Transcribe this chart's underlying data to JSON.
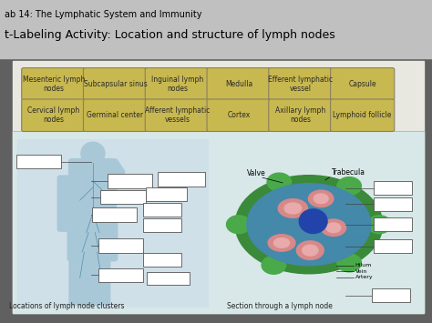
{
  "title1": "ab 14: The Lymphatic System and Immunity",
  "title2": "t-Labeling Activity: Location and structure of lymph nodes",
  "row1_buttons": [
    "Mesenteric lymph\nnodes",
    "Subcapsular sinus",
    "Inguinal lymph\nnodes",
    "Medulla",
    "Efferent lymphatic\nvessel",
    "Capsule"
  ],
  "row2_buttons": [
    "Cervical lymph\nnodes",
    "Germinal center",
    "Afferent lymphatic\nvessels",
    "Cortex",
    "Axillary lymph\nnodes",
    "Lymphoid follicle"
  ],
  "button_color": "#c8b850",
  "button_edge": "#8a8060",
  "button_text": "#2a2a2a",
  "button_fontsize": 5.5,
  "valve_label": "Valve",
  "trabecula_label": "Trabecula",
  "hilum_labels": [
    "Hilum",
    "Vein",
    "Artery"
  ],
  "bottom_label_left": "Locations of lymph node clusters",
  "bottom_label_right": "Section through a lymph node",
  "title1_fontsize": 7,
  "title2_fontsize": 9,
  "label_fontsize": 5.5,
  "bg_outer": "#606060",
  "bg_header": "#c0c0c0",
  "bg_panel": "#e8e8e0",
  "bg_diagram": "#d8e8e8",
  "body_color": "#a8c8d8",
  "lymph_line_color": "#5090a8",
  "node_outer_color": "#3a8a3a",
  "node_inner_color": "#4488aa",
  "follicle_color": "#d88888",
  "follicle_inner_color": "#e8aaaa",
  "vessel_color": "#2244aa",
  "bump_color": "#4aaa4a"
}
